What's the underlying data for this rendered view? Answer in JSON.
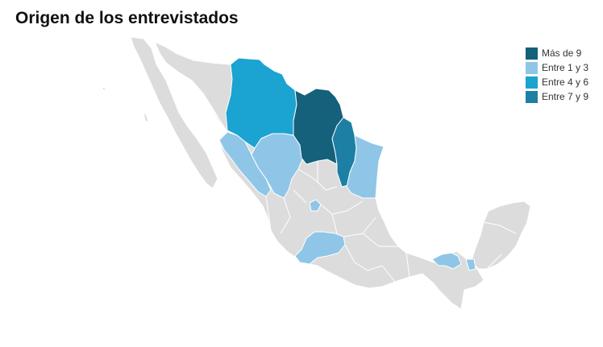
{
  "title": "Origen de los entrevistados",
  "colors": {
    "land": "#dcdcdc",
    "border": "#ffffff",
    "mas_de_9": "#15607a",
    "entre_1_3": "#8fc6e8",
    "entre_4_6": "#1ba3d1",
    "entre_7_9": "#1d7fa3"
  },
  "legend": {
    "placement": "top-right",
    "items": [
      {
        "label": "Más de 9",
        "color": "#15607a"
      },
      {
        "label": "Entre 1 y 3",
        "color": "#8fc6e8"
      },
      {
        "label": "Entre 4 y 6",
        "color": "#1ba3d1"
      },
      {
        "label": "Entre 7 y 9",
        "color": "#1d7fa3"
      }
    ]
  }
}
